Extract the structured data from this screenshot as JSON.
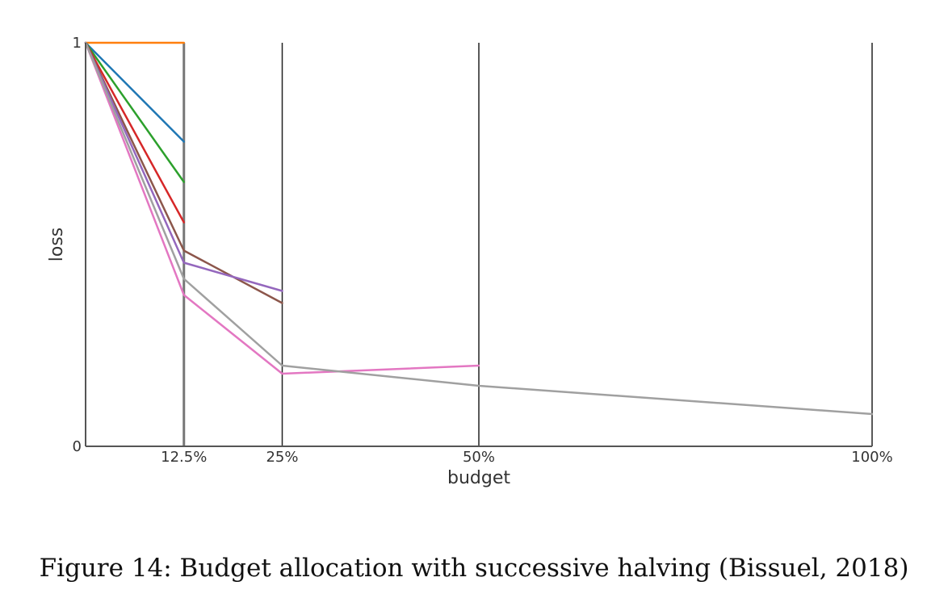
{
  "caption": "Figure 14: Budget allocation with successive halving (Bissuel, 2018)",
  "chart_data": {
    "type": "line",
    "xlabel": "budget",
    "ylabel": "loss",
    "xlim": [
      0,
      100
    ],
    "ylim": [
      0,
      1
    ],
    "x_ticks": [
      {
        "value": 12.5,
        "label": "12.5%"
      },
      {
        "value": 25,
        "label": "25%"
      },
      {
        "value": 50,
        "label": "50%"
      },
      {
        "value": 100,
        "label": "100%"
      }
    ],
    "y_ticks": [
      {
        "value": 0,
        "label": "0"
      },
      {
        "value": 1,
        "label": "1"
      }
    ],
    "vertical_lines": [
      12.5,
      25,
      50,
      100
    ],
    "series": [
      {
        "color": "#ff7f0e",
        "points": [
          [
            0,
            1.0
          ],
          [
            12.5,
            1.0
          ]
        ]
      },
      {
        "color": "#1f77b4",
        "points": [
          [
            0,
            1.0
          ],
          [
            12.5,
            0.755
          ]
        ]
      },
      {
        "color": "#2ca02c",
        "points": [
          [
            0,
            1.0
          ],
          [
            12.5,
            0.655
          ]
        ]
      },
      {
        "color": "#d62728",
        "points": [
          [
            0,
            1.0
          ],
          [
            12.5,
            0.555
          ]
        ]
      },
      {
        "color": "#8c564b",
        "points": [
          [
            0,
            1.0
          ],
          [
            12.5,
            0.485
          ],
          [
            25,
            0.355
          ]
        ]
      },
      {
        "color": "#9467bd",
        "points": [
          [
            0,
            1.0
          ],
          [
            12.5,
            0.455
          ],
          [
            25,
            0.385
          ]
        ]
      },
      {
        "color": "#e377c2",
        "points": [
          [
            0,
            1.0
          ],
          [
            12.5,
            0.375
          ],
          [
            25,
            0.18
          ],
          [
            50,
            0.2
          ]
        ]
      },
      {
        "color": "#a0a0a0",
        "points": [
          [
            0,
            1.0
          ],
          [
            12.5,
            0.415
          ],
          [
            25,
            0.2
          ],
          [
            50,
            0.15
          ],
          [
            100,
            0.08
          ]
        ]
      }
    ]
  }
}
